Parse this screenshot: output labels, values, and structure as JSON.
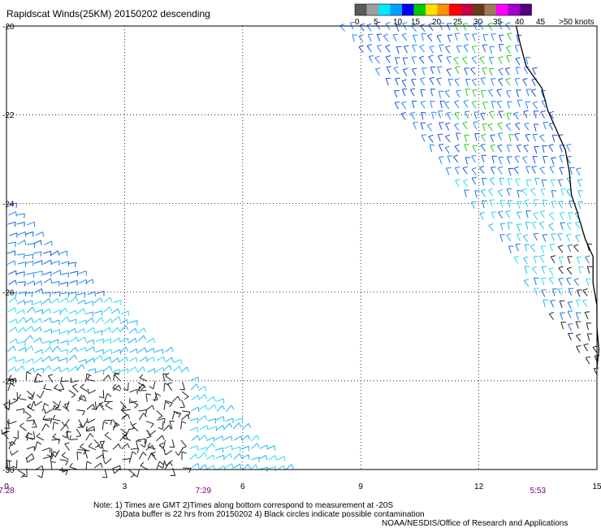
{
  "chart_data": {
    "type": "scatter",
    "title": "Rapidscat Winds(25KM) 20150202 descending",
    "xlim": [
      0,
      15
    ],
    "ylim": [
      -30,
      -20
    ],
    "x_ticks": [
      "0",
      "3",
      "6",
      "9",
      "12",
      "15"
    ],
    "y_ticks": [
      "-20",
      "-22",
      "-24",
      "-26",
      "-28",
      "-30"
    ],
    "grid": true,
    "legend": {
      "position": "top-right",
      "labels": [
        "0",
        "5",
        "10",
        "15",
        "20",
        "25",
        "30",
        "35",
        "40",
        "45",
        ">50 knots"
      ],
      "colors": [
        "#5a5a5a",
        "#9e9e9e",
        "#00e8ff",
        "#00a0ff",
        "#0000ff",
        "#00c800",
        "#ffe000",
        "#ff9000",
        "#ff0000",
        "#c80040",
        "#6a3a1a",
        "#a07860",
        "#ff00ff",
        "#a000c8",
        "#500080"
      ]
    },
    "time_labels": [
      {
        "x": 0,
        "text": "7:28"
      },
      {
        "x": 5,
        "text": "7:29"
      },
      {
        "x": 13.5,
        "text": "5:53"
      }
    ],
    "swaths": [
      {
        "name": "swath-east",
        "polygon": [
          [
            8.4,
            -20
          ],
          [
            12.9,
            -20
          ],
          [
            14.6,
            -23.3
          ],
          [
            15.1,
            -28.1
          ],
          [
            8.4,
            -20
          ]
        ],
        "dominant_speed_knots": "10-20"
      },
      {
        "name": "swath-southwest",
        "polygon": [
          [
            0,
            -24
          ],
          [
            7.2,
            -30
          ],
          [
            0,
            -30
          ]
        ],
        "dominant_speed_knots": "0-12"
      }
    ],
    "coastline": [
      [
        12.95,
        -20.0
      ],
      [
        13.05,
        -20.4
      ],
      [
        13.2,
        -20.9
      ],
      [
        13.6,
        -21.4
      ],
      [
        13.75,
        -21.9
      ],
      [
        14.0,
        -22.4
      ],
      [
        14.2,
        -22.8
      ],
      [
        14.3,
        -23.3
      ],
      [
        14.35,
        -23.8
      ],
      [
        14.5,
        -24.2
      ],
      [
        14.7,
        -24.8
      ],
      [
        14.9,
        -25.2
      ],
      [
        14.9,
        -25.8
      ],
      [
        15.0,
        -26.3
      ],
      [
        15.0,
        -26.8
      ],
      [
        15.05,
        -27.3
      ],
      [
        15.0,
        -27.7
      ]
    ]
  },
  "notes": {
    "line1": "Note: 1) Times are GMT 2)Times along bottom correspond to measurement at -20S",
    "line2": "3)Data buffer is 22 hrs from 20150202 4) Black circles indicate possible contamination",
    "credit": "NOAA/NESDIS/Office of Research and Applications"
  }
}
